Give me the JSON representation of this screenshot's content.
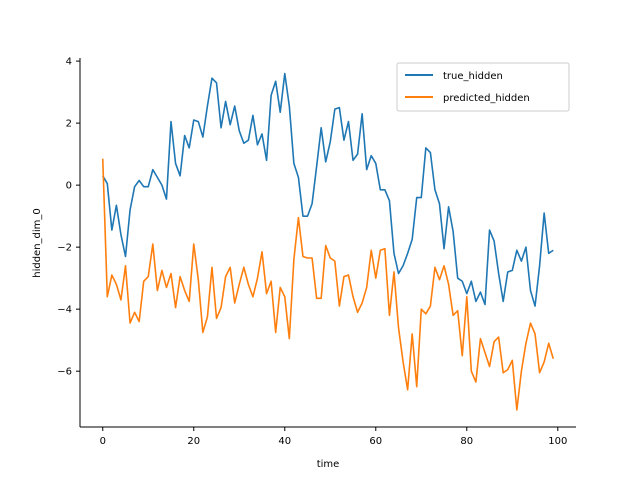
{
  "chart_data": {
    "type": "line",
    "xlabel": "time",
    "ylabel": "hidden_dim_0",
    "xlim": [
      -5,
      104
    ],
    "ylim": [
      -7.8,
      4.1
    ],
    "xticks": [
      0,
      20,
      40,
      60,
      80,
      100
    ],
    "yticks": [
      4,
      2,
      0,
      -2,
      -4,
      -6
    ],
    "legend_position": "upper right",
    "grid": false,
    "series": [
      {
        "name": "true_hidden",
        "color": "#1f77b4",
        "x": [
          0,
          1,
          2,
          3,
          4,
          5,
          6,
          7,
          8,
          9,
          10,
          11,
          12,
          13,
          14,
          15,
          16,
          17,
          18,
          19,
          20,
          21,
          22,
          23,
          24,
          25,
          26,
          27,
          28,
          29,
          30,
          31,
          32,
          33,
          34,
          35,
          36,
          37,
          38,
          39,
          40,
          41,
          42,
          43,
          44,
          45,
          46,
          47,
          48,
          49,
          50,
          51,
          52,
          53,
          54,
          55,
          56,
          57,
          58,
          59,
          60,
          61,
          62,
          63,
          64,
          65,
          66,
          67,
          68,
          69,
          70,
          71,
          72,
          73,
          74,
          75,
          76,
          77,
          78,
          79,
          80,
          81,
          82,
          83,
          84,
          85,
          86,
          87,
          88,
          89,
          90,
          91,
          92,
          93,
          94,
          95,
          96,
          97,
          98,
          99
        ],
        "values": [
          0.3,
          0.05,
          -1.45,
          -0.65,
          -1.6,
          -2.3,
          -0.8,
          -0.05,
          0.15,
          -0.05,
          -0.05,
          0.5,
          0.25,
          0.0,
          -0.45,
          2.05,
          0.7,
          0.3,
          1.6,
          1.2,
          2.1,
          2.05,
          1.55,
          2.55,
          3.45,
          3.3,
          1.85,
          2.7,
          1.95,
          2.55,
          1.75,
          1.35,
          1.45,
          2.25,
          1.3,
          1.65,
          0.8,
          2.9,
          3.35,
          2.35,
          3.6,
          2.55,
          0.7,
          0.25,
          -1.0,
          -1.0,
          -0.6,
          0.6,
          1.85,
          0.75,
          1.4,
          2.45,
          2.5,
          1.45,
          2.05,
          0.8,
          1.0,
          2.3,
          0.5,
          0.95,
          0.7,
          -0.15,
          -0.15,
          -0.5,
          -2.2,
          -2.85,
          -2.6,
          -2.2,
          -1.75,
          -0.4,
          -0.4,
          1.2,
          1.05,
          -0.15,
          -0.6,
          -2.05,
          -0.7,
          -1.5,
          -3.0,
          -3.1,
          -3.5,
          -3.1,
          -3.75,
          -3.45,
          -3.85,
          -1.45,
          -1.8,
          -2.85,
          -3.75,
          -2.8,
          -2.75,
          -2.1,
          -2.45,
          -2.0,
          -3.4,
          -3.9,
          -2.6,
          -0.9,
          -2.2,
          -2.1
        ]
      },
      {
        "name": "predicted_hidden",
        "color": "#ff7f0e",
        "x": [
          0,
          1,
          2,
          3,
          4,
          5,
          6,
          7,
          8,
          9,
          10,
          11,
          12,
          13,
          14,
          15,
          16,
          17,
          18,
          19,
          20,
          21,
          22,
          23,
          24,
          25,
          26,
          27,
          28,
          29,
          30,
          31,
          32,
          33,
          34,
          35,
          36,
          37,
          38,
          39,
          40,
          41,
          42,
          43,
          44,
          45,
          46,
          47,
          48,
          49,
          50,
          51,
          52,
          53,
          54,
          55,
          56,
          57,
          58,
          59,
          60,
          61,
          62,
          63,
          64,
          65,
          66,
          67,
          68,
          69,
          70,
          71,
          72,
          73,
          74,
          75,
          76,
          77,
          78,
          79,
          80,
          81,
          82,
          83,
          84,
          85,
          86,
          87,
          88,
          89,
          90,
          91,
          92,
          93,
          94,
          95,
          96,
          97,
          98,
          99
        ],
        "values": [
          0.85,
          -3.6,
          -2.9,
          -3.2,
          -3.7,
          -2.6,
          -4.45,
          -4.1,
          -4.4,
          -3.1,
          -2.95,
          -1.9,
          -3.4,
          -2.75,
          -3.3,
          -2.85,
          -3.95,
          -2.95,
          -3.4,
          -3.75,
          -1.9,
          -3.05,
          -4.75,
          -4.25,
          -2.65,
          -4.3,
          -3.95,
          -2.95,
          -2.65,
          -3.8,
          -3.2,
          -2.65,
          -3.2,
          -3.6,
          -3.0,
          -2.15,
          -3.5,
          -3.1,
          -4.75,
          -3.3,
          -3.6,
          -4.95,
          -2.4,
          -1.05,
          -2.3,
          -2.35,
          -2.35,
          -3.65,
          -3.65,
          -1.95,
          -2.35,
          -2.45,
          -3.9,
          -2.95,
          -2.9,
          -3.6,
          -4.1,
          -3.8,
          -3.3,
          -2.1,
          -3.0,
          -2.1,
          -2.05,
          -4.2,
          -2.8,
          -4.6,
          -5.7,
          -6.6,
          -4.8,
          -6.5,
          -4.0,
          -4.15,
          -3.9,
          -2.65,
          -3.05,
          -2.6,
          -3.2,
          -4.2,
          -4.05,
          -5.5,
          -3.6,
          -6.0,
          -6.35,
          -4.95,
          -5.4,
          -5.85,
          -5.05,
          -4.9,
          -6.05,
          -5.95,
          -5.65,
          -7.25,
          -6.0,
          -5.1,
          -4.45,
          -4.8,
          -6.05,
          -5.7,
          -5.1,
          -5.6
        ]
      }
    ]
  }
}
